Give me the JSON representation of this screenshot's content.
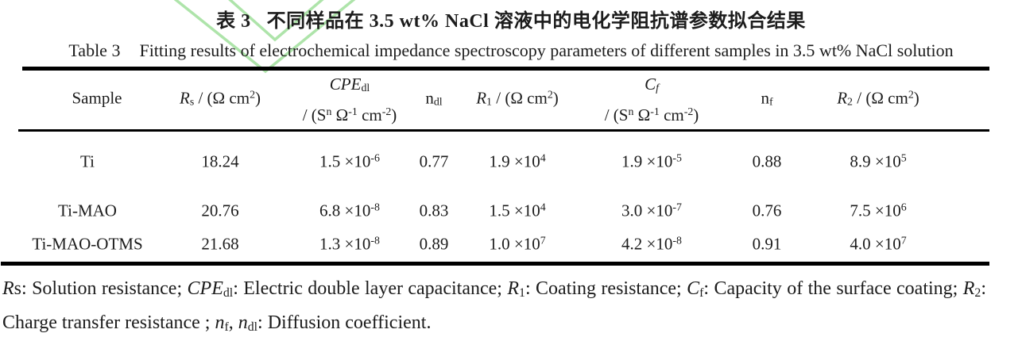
{
  "watermark": {
    "name": "double-chevron-v",
    "color": "#aee4aa"
  },
  "captions": {
    "zh_label": "表 3",
    "zh_text": "不同样品在 3.5 wt% NaCl 溶液中的电化学阻抗谱参数拟合结果",
    "en_label": "Table 3",
    "en_text": "Fitting results of electrochemical impedance spectroscopy parameters of different samples in 3.5 wt% NaCl solution"
  },
  "table": {
    "header": [
      {
        "lines": [
          [
            {
              "t": "Sample"
            }
          ]
        ]
      },
      {
        "lines": [
          [
            {
              "t": "R",
              "s": "i"
            },
            {
              "t": "s",
              "s": "sub"
            },
            {
              "t": " / (Ω cm"
            },
            {
              "t": "2",
              "s": "sup"
            },
            {
              "t": ")"
            }
          ]
        ]
      },
      {
        "lines": [
          [
            {
              "t": "CPE",
              "s": "i"
            },
            {
              "t": "dl",
              "s": "sub"
            }
          ],
          [
            {
              "t": "/ (S"
            },
            {
              "t": "n",
              "s": "sup"
            },
            {
              "t": " Ω"
            },
            {
              "t": "-1",
              "s": "sup"
            },
            {
              "t": " cm"
            },
            {
              "t": "-2",
              "s": "sup"
            },
            {
              "t": ")"
            }
          ]
        ]
      },
      {
        "lines": [
          [
            {
              "t": "n"
            },
            {
              "t": "dl",
              "s": "sub"
            }
          ]
        ]
      },
      {
        "lines": [
          [
            {
              "t": "R",
              "s": "i"
            },
            {
              "t": "1",
              "s": "sub"
            },
            {
              "t": " / (Ω cm"
            },
            {
              "t": "2",
              "s": "sup"
            },
            {
              "t": ")"
            }
          ]
        ]
      },
      {
        "lines": [
          [
            {
              "t": "C",
              "s": "i"
            },
            {
              "t": "f",
              "s": "isub"
            }
          ],
          [
            {
              "t": "/ (S"
            },
            {
              "t": "n",
              "s": "sup"
            },
            {
              "t": " Ω"
            },
            {
              "t": "-1",
              "s": "sup"
            },
            {
              "t": " cm"
            },
            {
              "t": "-2",
              "s": "sup"
            },
            {
              "t": ")"
            }
          ]
        ]
      },
      {
        "lines": [
          [
            {
              "t": "n"
            },
            {
              "t": "f",
              "s": "sub"
            }
          ]
        ]
      },
      {
        "lines": [
          [
            {
              "t": "R",
              "s": "i"
            },
            {
              "t": "2",
              "s": "sub"
            },
            {
              "t": " / (Ω cm"
            },
            {
              "t": "2",
              "s": "sup"
            },
            {
              "t": ")"
            }
          ]
        ]
      }
    ],
    "rows": [
      {
        "cells": [
          [
            {
              "t": "Ti"
            }
          ],
          [
            {
              "t": "18.24"
            }
          ],
          [
            {
              "t": "1.5 ×10"
            },
            {
              "t": "-6",
              "s": "sup"
            }
          ],
          [
            {
              "t": "0.77"
            }
          ],
          [
            {
              "t": "1.9 ×10"
            },
            {
              "t": "4",
              "s": "sup"
            }
          ],
          [
            {
              "t": "1.9 ×10"
            },
            {
              "t": "-5",
              "s": "sup"
            }
          ],
          [
            {
              "t": "0.88"
            }
          ],
          [
            {
              "t": "8.9 ×10"
            },
            {
              "t": "5",
              "s": "sup"
            }
          ]
        ]
      },
      {
        "cells": [
          [
            {
              "t": "Ti-MAO"
            }
          ],
          [
            {
              "t": "20.76"
            }
          ],
          [
            {
              "t": "6.8 ×10"
            },
            {
              "t": "-8",
              "s": "sup"
            }
          ],
          [
            {
              "t": "0.83"
            }
          ],
          [
            {
              "t": "1.5 ×10"
            },
            {
              "t": "4",
              "s": "sup"
            }
          ],
          [
            {
              "t": "3.0 ×10"
            },
            {
              "t": "-7",
              "s": "sup"
            }
          ],
          [
            {
              "t": "0.76"
            }
          ],
          [
            {
              "t": "7.5 ×10"
            },
            {
              "t": "6",
              "s": "sup"
            }
          ]
        ]
      },
      {
        "cells": [
          [
            {
              "t": "Ti-MAO-OTMS"
            }
          ],
          [
            {
              "t": "21.68"
            }
          ],
          [
            {
              "t": "1.3 ×10"
            },
            {
              "t": "-8",
              "s": "sup"
            }
          ],
          [
            {
              "t": "0.89"
            }
          ],
          [
            {
              "t": "1.0 ×10"
            },
            {
              "t": "7",
              "s": "sup"
            }
          ],
          [
            {
              "t": "4.2 ×10"
            },
            {
              "t": "-8",
              "s": "sup"
            }
          ],
          [
            {
              "t": "0.91"
            }
          ],
          [
            {
              "t": "4.0 ×10"
            },
            {
              "t": "7",
              "s": "sup"
            }
          ]
        ]
      }
    ]
  },
  "footnote": [
    {
      "t": "R",
      "s": "i"
    },
    {
      "t": "s: Solution resistance; "
    },
    {
      "t": "CPE",
      "s": "i"
    },
    {
      "t": "dl",
      "s": "sub"
    },
    {
      "t": ": Electric double layer capacitance; "
    },
    {
      "t": "R",
      "s": "i"
    },
    {
      "t": "1",
      "s": "sub"
    },
    {
      "t": ": Coating resistance; "
    },
    {
      "t": "C",
      "s": "i"
    },
    {
      "t": "f",
      "s": "sub"
    },
    {
      "t": ": Capacity of the surface coating; "
    },
    {
      "t": "R",
      "s": "i"
    },
    {
      "t": "2",
      "s": "sub"
    },
    {
      "t": ": Charge transfer resistance ; "
    },
    {
      "t": "n",
      "s": "i"
    },
    {
      "t": "f",
      "s": "sub"
    },
    {
      "t": ", "
    },
    {
      "t": "n",
      "s": "i"
    },
    {
      "t": "dl",
      "s": "sub"
    },
    {
      "t": ": Diffusion coefficient."
    }
  ]
}
